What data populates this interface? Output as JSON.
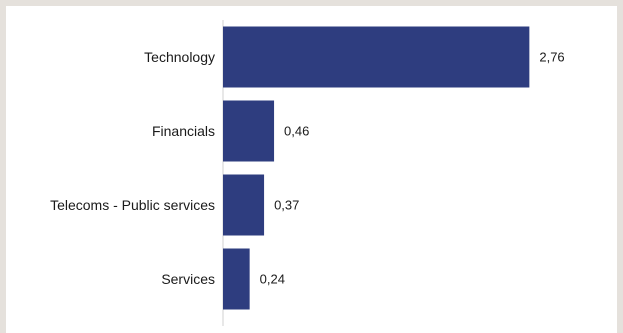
{
  "chart_data": {
    "type": "bar",
    "orientation": "horizontal",
    "title": "",
    "xlabel": "",
    "ylabel": "",
    "categories": [
      "Technology",
      "Financials",
      "Telecoms - Public services",
      "Services"
    ],
    "values": [
      2.76,
      0.46,
      0.37,
      0.24
    ],
    "value_labels": [
      "2,76",
      "0,46",
      "0,37",
      "0,24"
    ],
    "xlim": [
      0,
      3.0
    ],
    "grid": false,
    "legend": "none",
    "bar_color": "#2e3d7f",
    "axis_color": "#d0d0d0"
  }
}
